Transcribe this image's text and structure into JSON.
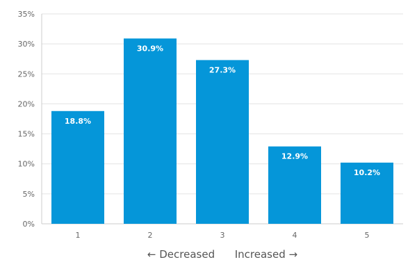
{
  "chart_data": {
    "type": "bar",
    "categories": [
      "1",
      "2",
      "3",
      "4",
      "5"
    ],
    "values": [
      18.8,
      30.9,
      27.3,
      12.9,
      10.2
    ],
    "value_labels": [
      "18.8%",
      "30.9%",
      "27.3%",
      "12.9%",
      "10.2%"
    ],
    "y_ticks": [
      0,
      5,
      10,
      15,
      20,
      25,
      30,
      35
    ],
    "y_tick_labels": [
      "0%",
      "5%",
      "10%",
      "15%",
      "20%",
      "25%",
      "30%",
      "35%"
    ],
    "ylim": [
      0,
      35
    ],
    "xlabel": "← Decreased      Increased →",
    "ylabel": "",
    "title": "",
    "grid": true,
    "bar_color": "#0596d9"
  }
}
